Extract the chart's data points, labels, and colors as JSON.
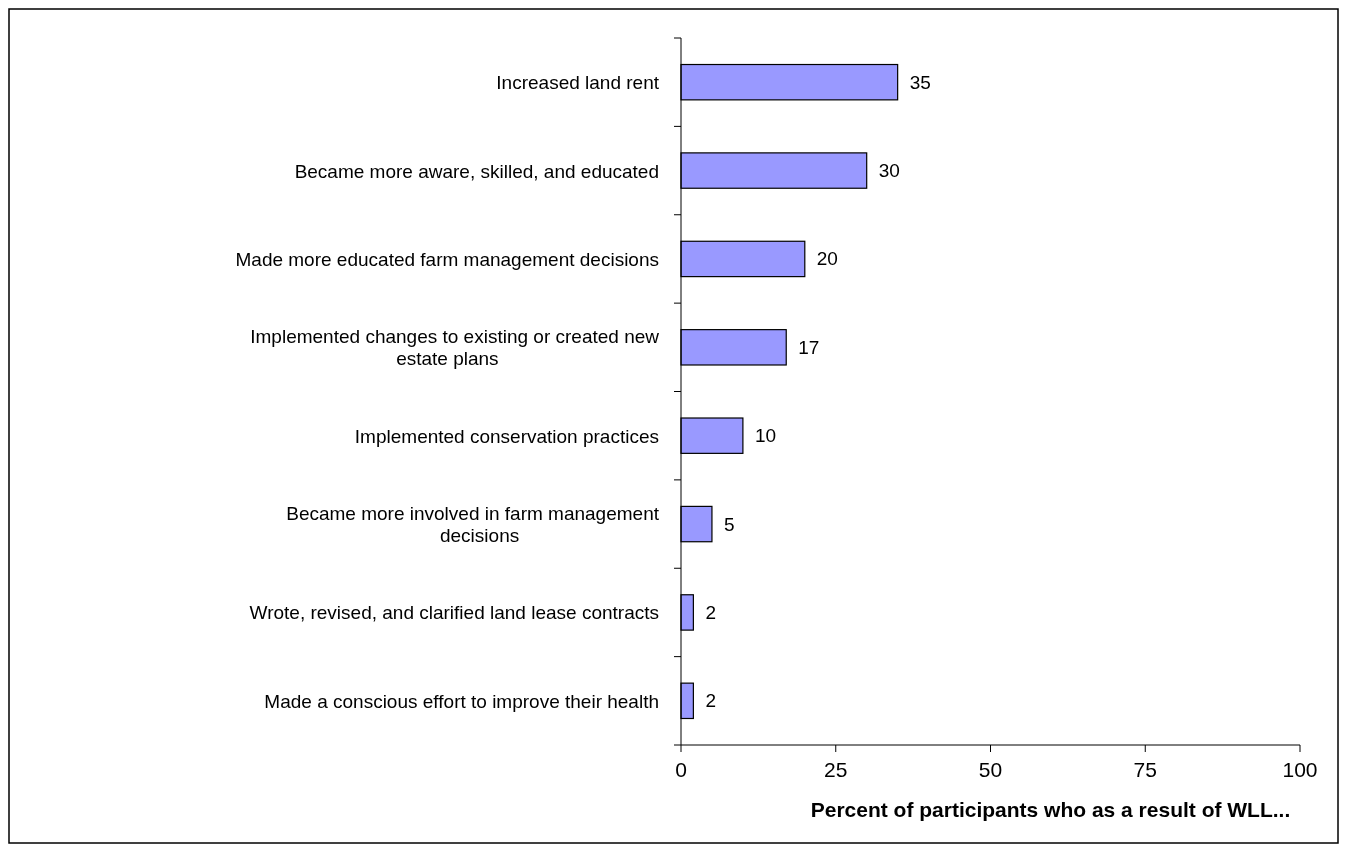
{
  "chart_data": {
    "type": "bar",
    "orientation": "horizontal",
    "xlabel": "Percent of participants who as a result of WLL...",
    "categories": [
      "Increased land rent",
      "Became more aware, skilled, and educated",
      "Made more educated farm management decisions",
      "Implemented changes to existing or created new\nestate plans",
      "Implemented conservation practices",
      "Became more involved in farm management\ndecisions",
      "Wrote, revised, and clarified land lease contracts",
      "Made a conscious effort to improve their health"
    ],
    "values": [
      35,
      30,
      20,
      17,
      10,
      5,
      2,
      2
    ],
    "color": "#9999ff",
    "xlim": [
      0,
      100
    ],
    "xticks": [
      0,
      25,
      50,
      75,
      100
    ],
    "data_labels": true,
    "grid": false
  }
}
